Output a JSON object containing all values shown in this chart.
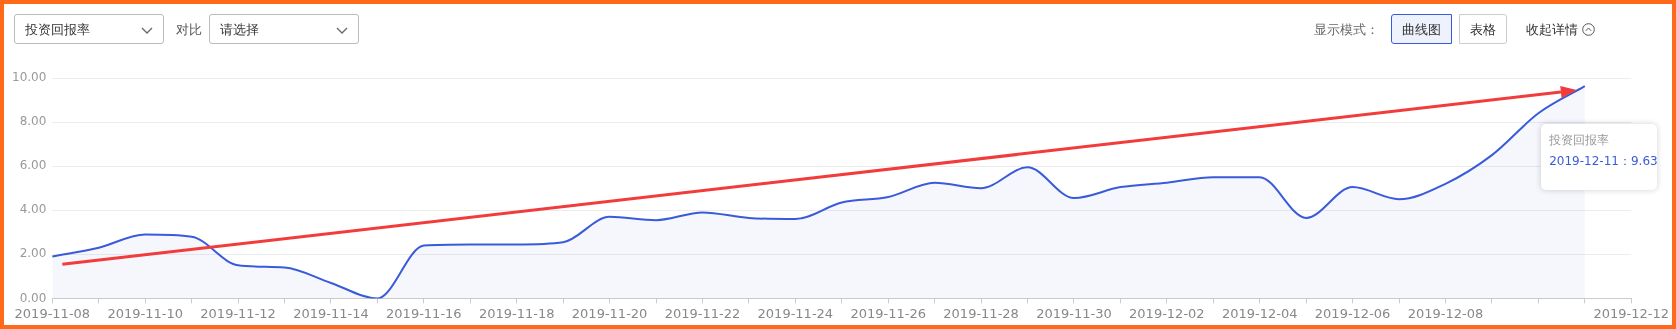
{
  "chart_data": {
    "type": "area",
    "categories": [
      "2019-11-08",
      null,
      "2019-11-10",
      null,
      "2019-11-12",
      null,
      "2019-11-14",
      null,
      "2019-11-16",
      null,
      "2019-11-18",
      null,
      "2019-11-20",
      null,
      "2019-11-22",
      null,
      "2019-11-24",
      null,
      "2019-11-26",
      null,
      "2019-11-28",
      null,
      "2019-11-30",
      null,
      "2019-12-02",
      null,
      "2019-12-04",
      null,
      "2019-12-06",
      null,
      "2019-12-08",
      null,
      null,
      null,
      "2019-12-12"
    ],
    "series": [
      {
        "name": "投资回报率",
        "color": "#3a5bd9",
        "values": [
          1.9,
          2.3,
          2.9,
          2.8,
          1.5,
          1.4,
          0.7,
          0.0,
          2.4,
          2.45,
          2.45,
          2.55,
          3.7,
          3.55,
          3.9,
          3.65,
          3.6,
          4.35,
          4.6,
          5.25,
          5.0,
          5.95,
          4.55,
          5.05,
          5.25,
          5.5,
          5.5,
          3.65,
          5.05,
          4.5,
          5.2,
          6.5,
          8.4,
          9.63,
          null
        ]
      }
    ],
    "ylim": [
      0,
      10
    ],
    "yticks": [
      {
        "value": 0,
        "label": "0.00"
      },
      {
        "value": 2,
        "label": "2.00"
      },
      {
        "value": 4,
        "label": "4.00"
      },
      {
        "value": 6,
        "label": "6.00"
      },
      {
        "value": 8,
        "label": "8.00"
      },
      {
        "value": 10,
        "label": "10.00"
      }
    ],
    "grid": "y",
    "legend": false,
    "annotations": [
      "对比",
      "请选择",
      "显示模式：",
      "曲线图",
      "表格",
      "收起详情",
      "2019-12-11：9.63"
    ]
  }
}
